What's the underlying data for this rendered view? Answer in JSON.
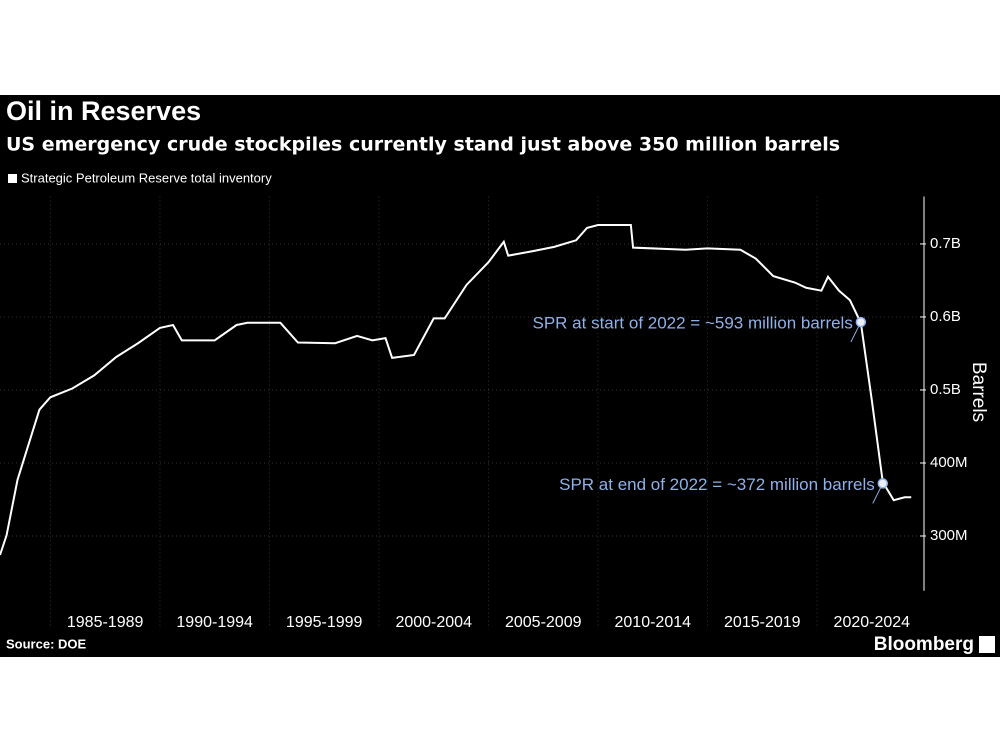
{
  "chart_data": {
    "type": "line",
    "title": "Oil in Reserves",
    "subtitle": "US emergency crude stockpiles currently stand just above 350 million barrels",
    "y_label": "Barrels",
    "source": "Source: DOE",
    "credit": "Bloomberg",
    "grid": true,
    "xlim": [
      1982.7,
      2024.7
    ],
    "xticks": [
      {
        "value": 1985,
        "label": "1985-1989"
      },
      {
        "value": 1990,
        "label": "1990-1994"
      },
      {
        "value": 1995,
        "label": "1995-1999"
      },
      {
        "value": 2000,
        "label": "2000-2004"
      },
      {
        "value": 2005,
        "label": "2005-2009"
      },
      {
        "value": 2010,
        "label": "2010-2014"
      },
      {
        "value": 2015,
        "label": "2015-2019"
      },
      {
        "value": 2020,
        "label": "2020-2024"
      }
    ],
    "ylim": [
      225,
      765
    ],
    "yticks": [
      {
        "value": 300,
        "label": "300M"
      },
      {
        "value": 400,
        "label": "400M"
      },
      {
        "value": 500,
        "label": "0.5B"
      },
      {
        "value": 600,
        "label": "0.6B"
      },
      {
        "value": 700,
        "label": "0.7B"
      }
    ],
    "x": [
      1982.7,
      1983.0,
      1983.5,
      1984,
      1984.5,
      1985,
      1986,
      1987,
      1988,
      1989,
      1990,
      1990.6,
      1991,
      1992.5,
      1993.5,
      1994,
      1995.5,
      1996.3,
      1998,
      1999,
      1999.7,
      2000.3,
      2000.6,
      2001.6,
      2002.5,
      2003,
      2004,
      2005,
      2005.7,
      2005.9,
      2007,
      2008,
      2009,
      2009.5,
      2010,
      2011.5,
      2011.6,
      2014,
      2015,
      2016.5,
      2017.2,
      2018,
      2019,
      2019.5,
      2020.2,
      2020.5,
      2021,
      2021.5,
      2022,
      2022.5,
      2023,
      2023.5,
      2024,
      2024.3
    ],
    "series": [
      {
        "name": "Strategic Petroleum Reserve total inventory",
        "color": "#ffffff",
        "values": [
          274,
          301,
          377,
          425,
          473,
          490,
          502,
          520,
          545,
          564,
          585,
          589,
          568,
          568,
          589,
          592,
          592,
          565,
          564,
          574,
          568,
          571,
          544,
          548,
          598,
          598,
          644,
          675,
          703,
          684,
          690,
          696,
          705,
          722,
          726,
          726,
          695,
          692,
          694,
          692,
          680,
          656,
          647,
          640,
          636,
          655,
          636,
          623,
          592,
          486,
          374,
          349,
          353,
          353
        ]
      }
    ],
    "annotations": [
      {
        "text": "SPR at start of 2022 = ~593 million barrels",
        "x": 2022,
        "y": 593
      },
      {
        "text": "SPR at end of 2022 = ~372 million barrels",
        "x": 2023,
        "y": 372
      }
    ]
  }
}
